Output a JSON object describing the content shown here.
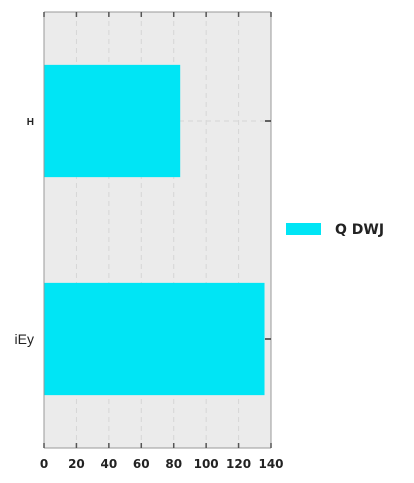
{
  "chart_data": {
    "type": "bar",
    "orientation": "horizontal",
    "categories": [
      "H",
      "iEy"
    ],
    "series": [
      {
        "name": "Q DWJ",
        "values": [
          84,
          136
        ]
      }
    ],
    "xlim": [
      0,
      140
    ],
    "xticks": [
      0,
      20,
      40,
      60,
      80,
      100,
      120,
      140
    ],
    "grid": true,
    "legend_position": "right",
    "colors": {
      "bar": "#00e5f5",
      "plot_background": "#ebebeb",
      "grid": "#d6d6d6",
      "axis": "#999999"
    }
  }
}
